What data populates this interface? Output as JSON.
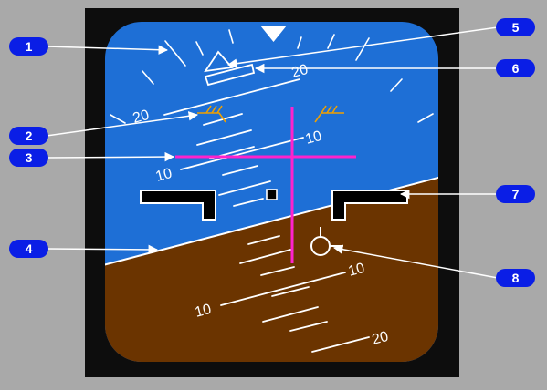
{
  "colors": {
    "surround": "#a9a9a9",
    "bezel": "#0d0d0d",
    "sky": "#1e6fd6",
    "ground": "#6b3400",
    "horizon": "#ffffff",
    "flight_director": "#ff22cc",
    "aircraft_symbol_fill": "#000000",
    "aircraft_symbol_stroke": "#ffffff",
    "bank_limit": "#f0a000",
    "callout_badge": "#0a1ee6",
    "callout_text": "#ffffff"
  },
  "pitch_scale_labels": {
    "sky_20_left": "20",
    "sky_20_right": "20",
    "sky_10_left": "10",
    "sky_10_right": "10",
    "ground_10_left": "10",
    "ground_10_right": "10",
    "ground_20_right": "20"
  },
  "callouts": [
    {
      "number": "1",
      "icon": "bank-scale"
    },
    {
      "number": "2",
      "icon": "bank-limit-marker"
    },
    {
      "number": "3",
      "icon": "flight-director-bar"
    },
    {
      "number": "4",
      "icon": "horizon-line"
    },
    {
      "number": "5",
      "icon": "sky-pointer"
    },
    {
      "number": "6",
      "icon": "slip-skid-indicator"
    },
    {
      "number": "7",
      "icon": "aircraft-symbol"
    },
    {
      "number": "8",
      "icon": "flight-path-vector"
    }
  ]
}
